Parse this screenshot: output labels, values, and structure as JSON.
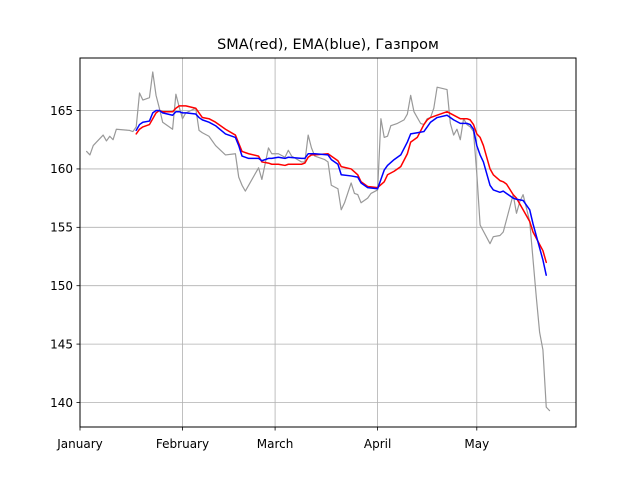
{
  "chart_data": {
    "type": "line",
    "title": "SMA(red), EMA(blue), Газпром",
    "xlabel": "",
    "ylabel": "",
    "x_axis": {
      "type": "date",
      "range": [
        "2021-01-01",
        "2021-05-31"
      ],
      "ticks": [
        {
          "date": "2021-01-01",
          "label": "January"
        },
        {
          "date": "2021-02-01",
          "label": "February"
        },
        {
          "date": "2021-03-01",
          "label": "March"
        },
        {
          "date": "2021-04-01",
          "label": "April"
        },
        {
          "date": "2021-05-01",
          "label": "May"
        }
      ]
    },
    "y_axis": {
      "range": [
        137.9,
        169.5
      ],
      "ticks": [
        140,
        145,
        150,
        155,
        160,
        165
      ]
    },
    "grid": true,
    "legend": "none",
    "series": [
      {
        "color": "#999999",
        "linewidth": 1.2,
        "points": [
          [
            "2021-01-03",
            161.5
          ],
          [
            "2021-01-04",
            161.2
          ],
          [
            "2021-01-05",
            162.0
          ],
          [
            "2021-01-06",
            162.3
          ],
          [
            "2021-01-07",
            162.6
          ],
          [
            "2021-01-08",
            162.9
          ],
          [
            "2021-01-09",
            162.4
          ],
          [
            "2021-01-10",
            162.8
          ],
          [
            "2021-01-11",
            162.5
          ],
          [
            "2021-01-12",
            163.4
          ],
          [
            "2021-01-16",
            163.3
          ],
          [
            "2021-01-17",
            163.2
          ],
          [
            "2021-01-18",
            163.6
          ],
          [
            "2021-01-19",
            166.5
          ],
          [
            "2021-01-20",
            165.9
          ],
          [
            "2021-01-22",
            166.1
          ],
          [
            "2021-01-23",
            168.3
          ],
          [
            "2021-01-24",
            166.3
          ],
          [
            "2021-01-25",
            165.2
          ],
          [
            "2021-01-26",
            164.0
          ],
          [
            "2021-01-29",
            163.4
          ],
          [
            "2021-01-30",
            166.4
          ],
          [
            "2021-01-31",
            165.3
          ],
          [
            "2021-02-01",
            164.3
          ],
          [
            "2021-02-02",
            164.8
          ],
          [
            "2021-02-05",
            165.2
          ],
          [
            "2021-02-06",
            163.3
          ],
          [
            "2021-02-07",
            163.1
          ],
          [
            "2021-02-09",
            162.8
          ],
          [
            "2021-02-11",
            162.0
          ],
          [
            "2021-02-14",
            161.2
          ],
          [
            "2021-02-17",
            161.3
          ],
          [
            "2021-02-18",
            159.3
          ],
          [
            "2021-02-19",
            158.6
          ],
          [
            "2021-02-20",
            158.1
          ],
          [
            "2021-02-21",
            158.6
          ],
          [
            "2021-02-24",
            160.1
          ],
          [
            "2021-02-25",
            159.1
          ],
          [
            "2021-02-27",
            161.8
          ],
          [
            "2021-02-28",
            161.3
          ],
          [
            "2021-03-02",
            161.3
          ],
          [
            "2021-03-04",
            161.0
          ],
          [
            "2021-03-05",
            161.6
          ],
          [
            "2021-03-06",
            161.1
          ],
          [
            "2021-03-09",
            160.6
          ],
          [
            "2021-03-10",
            160.6
          ],
          [
            "2021-03-11",
            162.9
          ],
          [
            "2021-03-12",
            161.8
          ],
          [
            "2021-03-13",
            161.1
          ],
          [
            "2021-03-16",
            160.8
          ],
          [
            "2021-03-17",
            160.6
          ],
          [
            "2021-03-18",
            158.6
          ],
          [
            "2021-03-20",
            158.3
          ],
          [
            "2021-03-21",
            156.5
          ],
          [
            "2021-03-22",
            157.1
          ],
          [
            "2021-03-24",
            158.8
          ],
          [
            "2021-03-25",
            157.9
          ],
          [
            "2021-03-26",
            157.8
          ],
          [
            "2021-03-27",
            157.1
          ],
          [
            "2021-03-29",
            157.5
          ],
          [
            "2021-03-30",
            157.9
          ],
          [
            "2021-04-01",
            158.2
          ],
          [
            "2021-04-02",
            164.3
          ],
          [
            "2021-04-03",
            162.7
          ],
          [
            "2021-04-04",
            162.8
          ],
          [
            "2021-04-05",
            163.7
          ],
          [
            "2021-04-07",
            163.9
          ],
          [
            "2021-04-09",
            164.2
          ],
          [
            "2021-04-10",
            164.7
          ],
          [
            "2021-04-11",
            166.3
          ],
          [
            "2021-04-12",
            164.9
          ],
          [
            "2021-04-13",
            164.4
          ],
          [
            "2021-04-14",
            163.9
          ],
          [
            "2021-04-15",
            163.8
          ],
          [
            "2021-04-16",
            164.3
          ],
          [
            "2021-04-17",
            164.4
          ],
          [
            "2021-04-18",
            165.2
          ],
          [
            "2021-04-19",
            167.0
          ],
          [
            "2021-04-22",
            166.8
          ],
          [
            "2021-04-23",
            163.9
          ],
          [
            "2021-04-24",
            162.9
          ],
          [
            "2021-04-25",
            163.4
          ],
          [
            "2021-04-26",
            162.5
          ],
          [
            "2021-04-27",
            164.3
          ],
          [
            "2021-04-28",
            163.8
          ],
          [
            "2021-04-29",
            163.6
          ],
          [
            "2021-04-30",
            163.2
          ],
          [
            "2021-05-01",
            159.6
          ],
          [
            "2021-05-02",
            155.2
          ],
          [
            "2021-05-05",
            153.6
          ],
          [
            "2021-05-06",
            154.2
          ],
          [
            "2021-05-08",
            154.3
          ],
          [
            "2021-05-09",
            154.6
          ],
          [
            "2021-05-12",
            157.8
          ],
          [
            "2021-05-13",
            156.2
          ],
          [
            "2021-05-14",
            157.2
          ],
          [
            "2021-05-15",
            157.8
          ],
          [
            "2021-05-17",
            155.5
          ],
          [
            "2021-05-19",
            149.0
          ],
          [
            "2021-05-20",
            146.0
          ],
          [
            "2021-05-21",
            144.5
          ],
          [
            "2021-05-22",
            139.6
          ],
          [
            "2021-05-23",
            139.3
          ]
        ]
      },
      {
        "color": "#ff0000",
        "linewidth": 1.5,
        "points": [
          [
            "2021-01-18",
            163.0
          ],
          [
            "2021-01-19",
            163.4
          ],
          [
            "2021-01-20",
            163.6
          ],
          [
            "2021-01-22",
            163.8
          ],
          [
            "2021-01-23",
            164.3
          ],
          [
            "2021-01-24",
            164.8
          ],
          [
            "2021-01-25",
            165.0
          ],
          [
            "2021-01-26",
            164.9
          ],
          [
            "2021-01-29",
            164.9
          ],
          [
            "2021-01-30",
            165.2
          ],
          [
            "2021-01-31",
            165.4
          ],
          [
            "2021-02-01",
            165.4
          ],
          [
            "2021-02-02",
            165.4
          ],
          [
            "2021-02-05",
            165.2
          ],
          [
            "2021-02-06",
            164.8
          ],
          [
            "2021-02-07",
            164.4
          ],
          [
            "2021-02-09",
            164.3
          ],
          [
            "2021-02-11",
            164.0
          ],
          [
            "2021-02-14",
            163.4
          ],
          [
            "2021-02-17",
            162.9
          ],
          [
            "2021-02-18",
            162.2
          ],
          [
            "2021-02-19",
            161.5
          ],
          [
            "2021-02-21",
            161.3
          ],
          [
            "2021-02-24",
            161.1
          ],
          [
            "2021-02-25",
            160.6
          ],
          [
            "2021-02-27",
            160.5
          ],
          [
            "2021-02-28",
            160.4
          ],
          [
            "2021-03-02",
            160.4
          ],
          [
            "2021-03-04",
            160.3
          ],
          [
            "2021-03-05",
            160.4
          ],
          [
            "2021-03-09",
            160.4
          ],
          [
            "2021-03-10",
            160.5
          ],
          [
            "2021-03-11",
            161.0
          ],
          [
            "2021-03-12",
            161.2
          ],
          [
            "2021-03-13",
            161.2
          ],
          [
            "2021-03-17",
            161.3
          ],
          [
            "2021-03-18",
            161.1
          ],
          [
            "2021-03-20",
            160.7
          ],
          [
            "2021-03-21",
            160.2
          ],
          [
            "2021-03-24",
            160.0
          ],
          [
            "2021-03-26",
            159.5
          ],
          [
            "2021-03-27",
            158.9
          ],
          [
            "2021-03-29",
            158.5
          ],
          [
            "2021-04-01",
            158.4
          ],
          [
            "2021-04-03",
            158.9
          ],
          [
            "2021-04-04",
            159.5
          ],
          [
            "2021-04-06",
            159.8
          ],
          [
            "2021-04-08",
            160.2
          ],
          [
            "2021-04-10",
            161.3
          ],
          [
            "2021-04-11",
            162.3
          ],
          [
            "2021-04-13",
            162.7
          ],
          [
            "2021-04-15",
            163.8
          ],
          [
            "2021-04-16",
            164.2
          ],
          [
            "2021-04-17",
            164.4
          ],
          [
            "2021-04-19",
            164.6
          ],
          [
            "2021-04-22",
            164.9
          ],
          [
            "2021-04-24",
            164.6
          ],
          [
            "2021-04-26",
            164.3
          ],
          [
            "2021-04-28",
            164.3
          ],
          [
            "2021-04-29",
            164.2
          ],
          [
            "2021-04-30",
            163.8
          ],
          [
            "2021-05-01",
            163.0
          ],
          [
            "2021-05-02",
            162.7
          ],
          [
            "2021-05-03",
            162.0
          ],
          [
            "2021-05-05",
            160.0
          ],
          [
            "2021-05-06",
            159.5
          ],
          [
            "2021-05-08",
            159.0
          ],
          [
            "2021-05-09",
            158.9
          ],
          [
            "2021-05-10",
            158.7
          ],
          [
            "2021-05-12",
            157.8
          ],
          [
            "2021-05-13",
            157.5
          ],
          [
            "2021-05-15",
            156.5
          ],
          [
            "2021-05-17",
            155.5
          ],
          [
            "2021-05-18",
            154.6
          ],
          [
            "2021-05-21",
            153.0
          ],
          [
            "2021-05-22",
            152.0
          ]
        ]
      },
      {
        "color": "#0000ff",
        "linewidth": 1.5,
        "points": [
          [
            "2021-01-18",
            163.3
          ],
          [
            "2021-01-19",
            163.8
          ],
          [
            "2021-01-20",
            164.0
          ],
          [
            "2021-01-22",
            164.1
          ],
          [
            "2021-01-23",
            164.8
          ],
          [
            "2021-01-24",
            165.0
          ],
          [
            "2021-01-25",
            165.0
          ],
          [
            "2021-01-26",
            164.8
          ],
          [
            "2021-01-29",
            164.6
          ],
          [
            "2021-01-30",
            164.9
          ],
          [
            "2021-01-31",
            164.9
          ],
          [
            "2021-02-01",
            164.8
          ],
          [
            "2021-02-02",
            164.8
          ],
          [
            "2021-02-05",
            164.7
          ],
          [
            "2021-02-06",
            164.4
          ],
          [
            "2021-02-07",
            164.2
          ],
          [
            "2021-02-09",
            164.0
          ],
          [
            "2021-02-11",
            163.7
          ],
          [
            "2021-02-14",
            163.0
          ],
          [
            "2021-02-17",
            162.7
          ],
          [
            "2021-02-18",
            162.0
          ],
          [
            "2021-02-19",
            161.1
          ],
          [
            "2021-02-21",
            160.9
          ],
          [
            "2021-02-24",
            160.9
          ],
          [
            "2021-02-25",
            160.7
          ],
          [
            "2021-02-27",
            160.9
          ],
          [
            "2021-02-28",
            160.9
          ],
          [
            "2021-03-02",
            161.0
          ],
          [
            "2021-03-04",
            160.9
          ],
          [
            "2021-03-05",
            161.0
          ],
          [
            "2021-03-09",
            160.9
          ],
          [
            "2021-03-10",
            160.9
          ],
          [
            "2021-03-11",
            161.3
          ],
          [
            "2021-03-12",
            161.3
          ],
          [
            "2021-03-13",
            161.3
          ],
          [
            "2021-03-17",
            161.2
          ],
          [
            "2021-03-18",
            160.8
          ],
          [
            "2021-03-20",
            160.4
          ],
          [
            "2021-03-21",
            159.5
          ],
          [
            "2021-03-24",
            159.4
          ],
          [
            "2021-03-26",
            159.3
          ],
          [
            "2021-03-27",
            158.8
          ],
          [
            "2021-03-29",
            158.4
          ],
          [
            "2021-04-01",
            158.3
          ],
          [
            "2021-04-03",
            159.9
          ],
          [
            "2021-04-04",
            160.3
          ],
          [
            "2021-04-06",
            160.8
          ],
          [
            "2021-04-08",
            161.2
          ],
          [
            "2021-04-10",
            162.3
          ],
          [
            "2021-04-11",
            163.0
          ],
          [
            "2021-04-13",
            163.1
          ],
          [
            "2021-04-15",
            163.2
          ],
          [
            "2021-04-16",
            163.6
          ],
          [
            "2021-04-17",
            164.0
          ],
          [
            "2021-04-19",
            164.4
          ],
          [
            "2021-04-22",
            164.6
          ],
          [
            "2021-04-24",
            164.2
          ],
          [
            "2021-04-26",
            163.9
          ],
          [
            "2021-04-28",
            163.9
          ],
          [
            "2021-04-29",
            163.8
          ],
          [
            "2021-04-30",
            163.4
          ],
          [
            "2021-05-01",
            162.0
          ],
          [
            "2021-05-02",
            161.2
          ],
          [
            "2021-05-03",
            160.6
          ],
          [
            "2021-05-05",
            158.6
          ],
          [
            "2021-05-06",
            158.2
          ],
          [
            "2021-05-08",
            158.0
          ],
          [
            "2021-05-09",
            158.1
          ],
          [
            "2021-05-10",
            157.9
          ],
          [
            "2021-05-12",
            157.5
          ],
          [
            "2021-05-13",
            157.4
          ],
          [
            "2021-05-15",
            157.3
          ],
          [
            "2021-05-17",
            156.5
          ],
          [
            "2021-05-18",
            155.3
          ],
          [
            "2021-05-21",
            152.2
          ],
          [
            "2021-05-22",
            150.9
          ]
        ]
      }
    ]
  }
}
